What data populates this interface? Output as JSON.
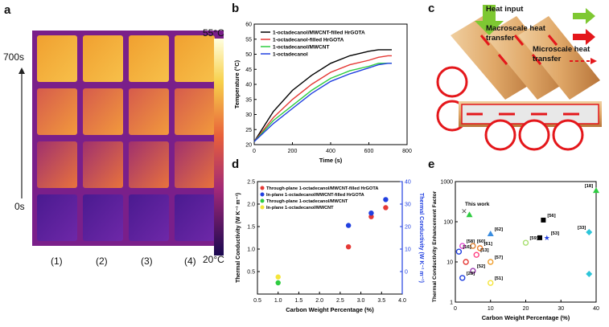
{
  "panel_a": {
    "label": "a",
    "time_top": "700s",
    "time_bottom": "0s",
    "temp_max": "55°C",
    "temp_min": "20°C",
    "samples": [
      "(1)",
      "(2)",
      "(3)",
      "(4)"
    ]
  },
  "panel_b": {
    "label": "b",
    "chart_data": {
      "type": "line",
      "xlabel": "Time (s)",
      "ylabel": "Temperature (°C)",
      "xlim": [
        0,
        800
      ],
      "ylim": [
        20,
        60
      ],
      "xticks": [
        "0",
        "200",
        "400",
        "600",
        "800"
      ],
      "yticks": [
        "20",
        "25",
        "30",
        "35",
        "40",
        "45",
        "50",
        "55",
        "60"
      ],
      "legend": "top-left",
      "series": [
        {
          "name": "1-octadecanol/MWCNT-filled HrGOTA",
          "color": "#000000",
          "x": [
            0,
            100,
            200,
            300,
            400,
            500,
            600,
            650,
            700,
            720
          ],
          "y": [
            21,
            31,
            38,
            43,
            47,
            49.5,
            51,
            51.5,
            51.5,
            51.5
          ]
        },
        {
          "name": "1-octadecanol-filled HrGOTA",
          "color": "#e53935",
          "x": [
            0,
            100,
            200,
            300,
            400,
            500,
            600,
            650,
            700,
            720
          ],
          "y": [
            21,
            29,
            35,
            40,
            44,
            46.5,
            48,
            49,
            49.5,
            49.5
          ]
        },
        {
          "name": "1-octadecanol/MWCNT",
          "color": "#2ecc40",
          "x": [
            0,
            100,
            200,
            300,
            400,
            500,
            600,
            650,
            700,
            720
          ],
          "y": [
            21,
            28,
            33,
            38,
            42,
            44.5,
            46,
            47,
            47,
            47
          ]
        },
        {
          "name": "1-octadecanol",
          "color": "#2140e0",
          "x": [
            0,
            100,
            200,
            300,
            400,
            500,
            600,
            650,
            700,
            720
          ],
          "y": [
            21,
            27,
            32,
            37,
            41,
            43.5,
            45.5,
            46.5,
            47,
            47
          ]
        }
      ]
    }
  },
  "panel_c": {
    "label": "c",
    "legend": {
      "heat_input": "Heat input",
      "macro_line1": "Macroscale heat",
      "macro_line2": "transfer",
      "micro_line1": "Microscale heat",
      "micro_line2": "transfer"
    },
    "colors": {
      "heat_input": "#7ec832",
      "macro": "#e4171b",
      "micro": "#e4171b"
    }
  },
  "panel_d": {
    "label": "d",
    "chart_data": {
      "type": "scatter",
      "xlabel": "Carbon Weight Percentage (%)",
      "ylabel": "Thermal Conductivity (W K⁻¹ m⁻¹)",
      "ylabel_right": "Thermal Conductivity (W K⁻¹ m⁻¹)",
      "xlim": [
        0.5,
        4.0
      ],
      "ylim": [
        0,
        2.5
      ],
      "ylim_right": [
        -10,
        40
      ],
      "xticks": [
        "0.5",
        "1.0",
        "1.5",
        "2.0",
        "2.5",
        "3.0",
        "3.5",
        "4.0"
      ],
      "yticks": [
        "0.5",
        "1.0",
        "1.5",
        "2.0",
        "2.5"
      ],
      "yticks_right": [
        "0",
        "10",
        "20",
        "30",
        "40"
      ],
      "legend": "top-left",
      "series": [
        {
          "name": "Through-plane 1-octadecanol/MWCNT-filled HrGOTA",
          "color": "#e53935",
          "axis": "left",
          "points": [
            [
              2.7,
              1.05
            ],
            [
              3.25,
              1.72
            ],
            [
              3.6,
              1.92
            ]
          ]
        },
        {
          "name": "In-plane 1-octadecanol/MWCNT-filled HrGOTA",
          "color": "#2140e0",
          "axis": "right",
          "points": [
            [
              2.7,
              20.5
            ],
            [
              3.25,
              26
            ],
            [
              3.6,
              32
            ]
          ]
        },
        {
          "name": "Through-plane 1-octadecanol/MWCNT",
          "color": "#2ecc40",
          "axis": "left",
          "points": [
            [
              1.0,
              0.25
            ]
          ]
        },
        {
          "name": "In-plane 1-octadecanol/MWCNT",
          "color": "#f5e53a",
          "axis": "left",
          "points": [
            [
              1.0,
              0.38
            ]
          ]
        }
      ]
    }
  },
  "panel_e": {
    "label": "e",
    "this_work": "This work",
    "chart_data": {
      "type": "scatter",
      "xlabel": "Carbon Weight Percentage (%)",
      "ylabel": "Thermal Conductivity Enhancement Factor",
      "xlim": [
        0,
        40
      ],
      "ylim_log": [
        1,
        1000
      ],
      "xticks": [
        "0",
        "10",
        "20",
        "30",
        "40"
      ],
      "yticks": [
        "1",
        "10",
        "100",
        "1000"
      ],
      "points": [
        {
          "label": "[18]",
          "x": 40,
          "y": 600,
          "color": "#2ecc40",
          "shape": "triangle"
        },
        {
          "label": "",
          "x": 2.5,
          "y": 180,
          "color": "#555555",
          "shape": "cross"
        },
        {
          "label": "",
          "x": 4,
          "y": 150,
          "color": "#2ecc40",
          "shape": "triangle"
        },
        {
          "label": "[56]",
          "x": 25,
          "y": 110,
          "color": "#000000",
          "shape": "square"
        },
        {
          "label": "[33]",
          "x": 38,
          "y": 55,
          "color": "#2dc5d9",
          "shape": "diamond"
        },
        {
          "label": "[62]",
          "x": 10,
          "y": 50,
          "color": "#3a8de0",
          "shape": "triangle"
        },
        {
          "label": "[53]",
          "x": 26,
          "y": 40,
          "color": "#2140e0",
          "shape": "star"
        },
        {
          "label": "",
          "x": 24,
          "y": 40,
          "color": "#000000",
          "shape": "square"
        },
        {
          "label": "[59]",
          "x": 20,
          "y": 30,
          "color": "#a8e070",
          "shape": "circle"
        },
        {
          "label": "[58]",
          "x": 2,
          "y": 25,
          "color": "#e04ad0",
          "shape": "circle"
        },
        {
          "label": "[60]",
          "x": 5,
          "y": 25,
          "color": "#e08030",
          "shape": "circle"
        },
        {
          "label": "[61]",
          "x": 7,
          "y": 22,
          "color": "#f08030",
          "shape": "circle"
        },
        {
          "label": "[16]",
          "x": 1,
          "y": 18,
          "color": "#2140e0",
          "shape": "circle"
        },
        {
          "label": "[13]",
          "x": 6,
          "y": 15,
          "color": "#ff4080",
          "shape": "circle"
        },
        {
          "label": "[57]",
          "x": 10,
          "y": 10,
          "color": "#f0a030",
          "shape": "circle"
        },
        {
          "label": "",
          "x": 3,
          "y": 10,
          "color": "#e53935",
          "shape": "circle"
        },
        {
          "label": "[52]",
          "x": 5,
          "y": 6,
          "color": "#9b3ab0",
          "shape": "circle"
        },
        {
          "label": "[28]",
          "x": 2,
          "y": 4,
          "color": "#2140e0",
          "shape": "circle"
        },
        {
          "label": "[51]",
          "x": 10,
          "y": 3,
          "color": "#f5e53a",
          "shape": "circle"
        },
        {
          "label": "",
          "x": 38,
          "y": 5,
          "color": "#2dc5d9",
          "shape": "diamond"
        }
      ]
    }
  }
}
